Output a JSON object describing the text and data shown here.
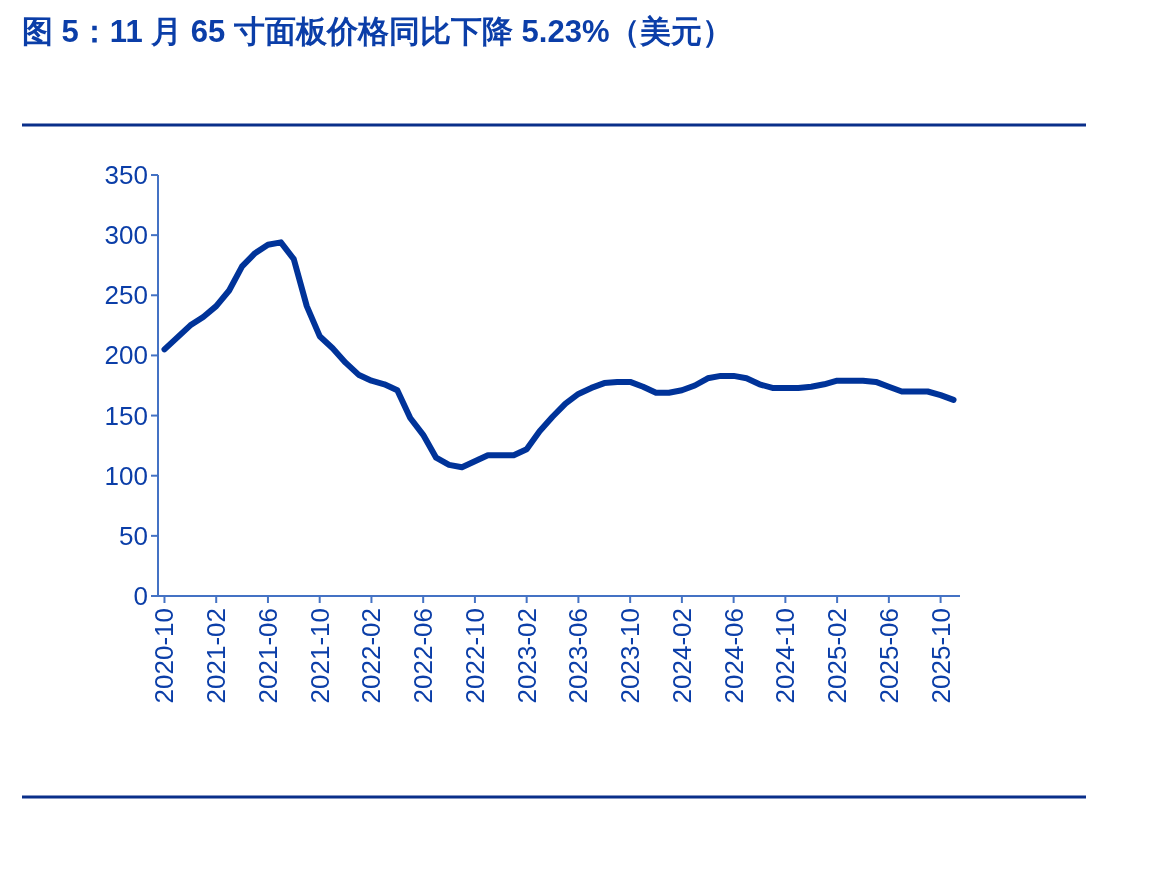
{
  "chart_data": {
    "type": "line",
    "title": "图 5：11 月 65 寸面板价格同比下降 5.23%（美元）",
    "categories": [
      "2020-10",
      null,
      null,
      null,
      "2021-02",
      null,
      null,
      null,
      "2021-06",
      null,
      null,
      null,
      "2021-10",
      null,
      null,
      null,
      "2022-02",
      null,
      null,
      null,
      "2022-06",
      null,
      null,
      null,
      "2022-10",
      null,
      null,
      null,
      "2023-02",
      null,
      null,
      null,
      "2023-06",
      null,
      null,
      null,
      "2023-10",
      null,
      null,
      null,
      "2024-02",
      null,
      null,
      null,
      "2024-06",
      null,
      null,
      null,
      "2024-10",
      null,
      null,
      null,
      "2025-02",
      null,
      null,
      null,
      "2025-06",
      null,
      null,
      null,
      "2025-10",
      null
    ],
    "series": [
      {
        "color": "#003399",
        "values": [
          205,
          215,
          225,
          232,
          241,
          254,
          274,
          285,
          292,
          294,
          280,
          241,
          216,
          206,
          194,
          184,
          179,
          176,
          171,
          148,
          134,
          115,
          109,
          107,
          112,
          117,
          117,
          117,
          122,
          137,
          149,
          160,
          168,
          173,
          177,
          178,
          178,
          174,
          169,
          169,
          171,
          175,
          181,
          183,
          183,
          181,
          176,
          173,
          173,
          173,
          174,
          176,
          179,
          179,
          179,
          178,
          174,
          170,
          170,
          170,
          167,
          163
        ]
      }
    ],
    "ylim": [
      0,
      350
    ],
    "yticks": [
      0,
      50,
      100,
      150,
      200,
      250,
      300,
      350
    ],
    "grid": false
  }
}
